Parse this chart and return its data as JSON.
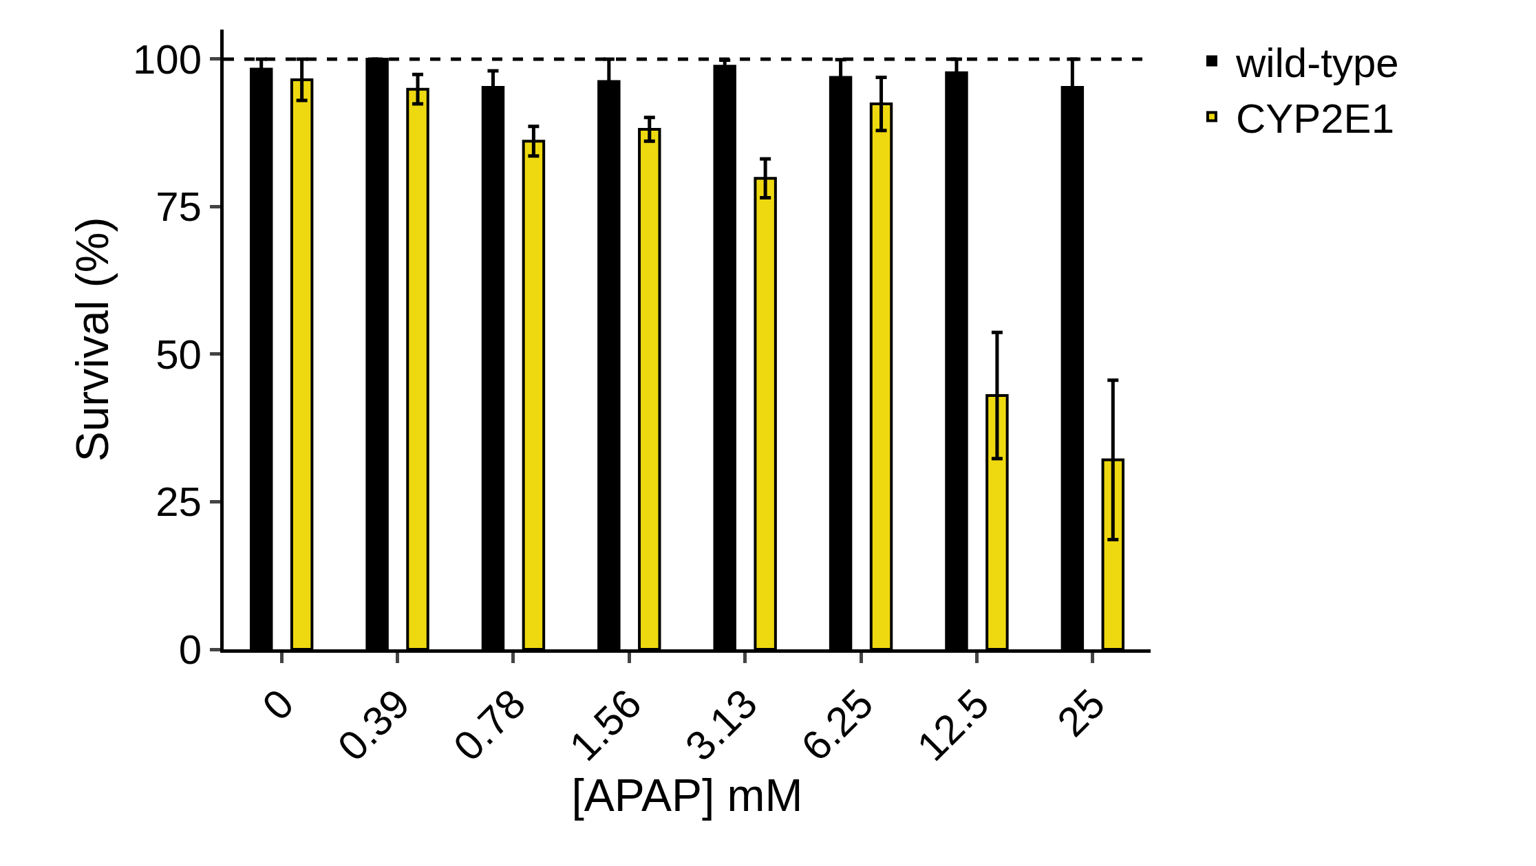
{
  "chart_data": {
    "type": "bar",
    "xlabel": "[APAP] mM",
    "ylabel": "Survival (%)",
    "categories": [
      "0",
      "0.39",
      "0.78",
      "1.56",
      "3.13",
      "6.25",
      "12.5",
      "25"
    ],
    "series": [
      {
        "name": "wild-type",
        "color": "#000000",
        "values": [
          98.3,
          100,
          95.2,
          96.2,
          98.8,
          96.9,
          97.7,
          95.2
        ],
        "errors": [
          1.7,
          0,
          2.8,
          3.8,
          1,
          3,
          2.3,
          4.8
        ]
      },
      {
        "name": "CYP2E1",
        "color": "#eed911",
        "values": [
          96.5,
          94.9,
          86.1,
          88.1,
          79.8,
          92.4,
          43,
          32.1
        ],
        "errors": [
          3.5,
          2.5,
          2.5,
          2,
          3.3,
          4.5,
          10.7,
          13.5
        ]
      }
    ],
    "ylim": [
      0,
      105
    ],
    "yticks": [
      0,
      25,
      50,
      75,
      100
    ],
    "ref_lines": [
      {
        "axis": "y",
        "value": 100,
        "line_style": "dashed",
        "color": "#000000"
      }
    ],
    "legend": "top right"
  }
}
